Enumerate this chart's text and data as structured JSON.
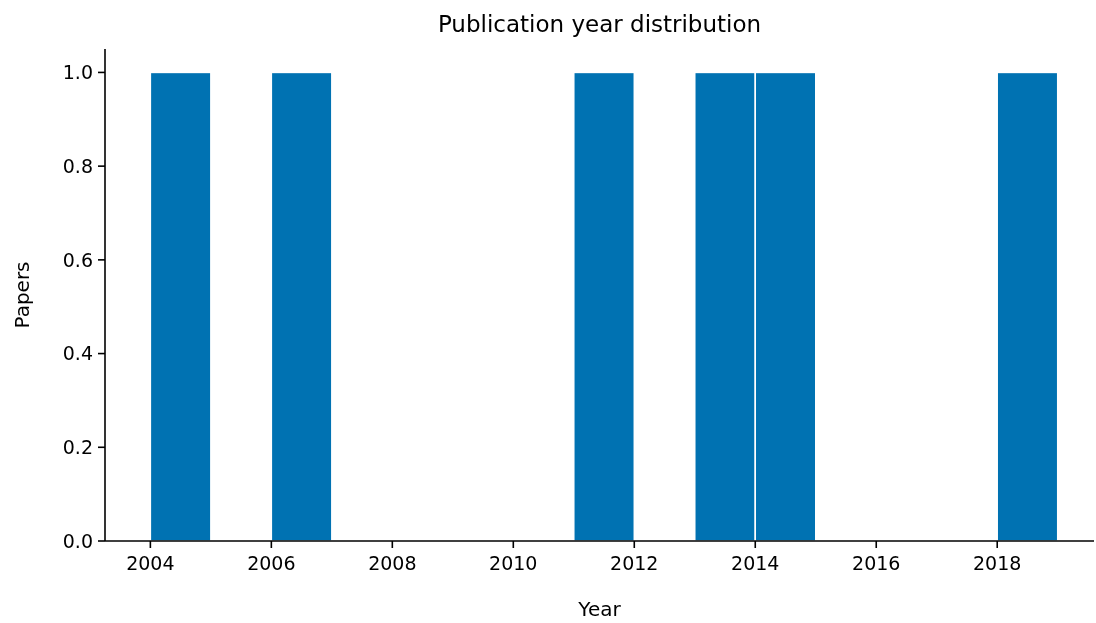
{
  "chart_data": {
    "type": "histogram",
    "title": "Publication year distribution",
    "xlabel": "Year",
    "ylabel": "Papers",
    "bins": [
      2004,
      2005,
      2006,
      2007,
      2008,
      2009,
      2010,
      2011,
      2012,
      2013,
      2014,
      2015,
      2016,
      2017,
      2018,
      2019
    ],
    "values": [
      1,
      0,
      1,
      0,
      0,
      0,
      0,
      1,
      0,
      1,
      1,
      0,
      0,
      0,
      1
    ],
    "color": "#0072b2",
    "xlim": [
      2003.25,
      2019.6
    ],
    "xticks": [
      2004,
      2006,
      2008,
      2010,
      2012,
      2014,
      2016,
      2018
    ],
    "ylim": [
      0,
      1.05
    ],
    "yticks": [
      {
        "value": 0,
        "label": "0.0"
      },
      {
        "value": 0.2,
        "label": "0.2"
      },
      {
        "value": 0.4,
        "label": "0.4"
      },
      {
        "value": 0.6,
        "label": "0.6"
      },
      {
        "value": 0.8,
        "label": "0.8"
      },
      {
        "value": 1,
        "label": "1.0"
      }
    ],
    "grid": false
  }
}
